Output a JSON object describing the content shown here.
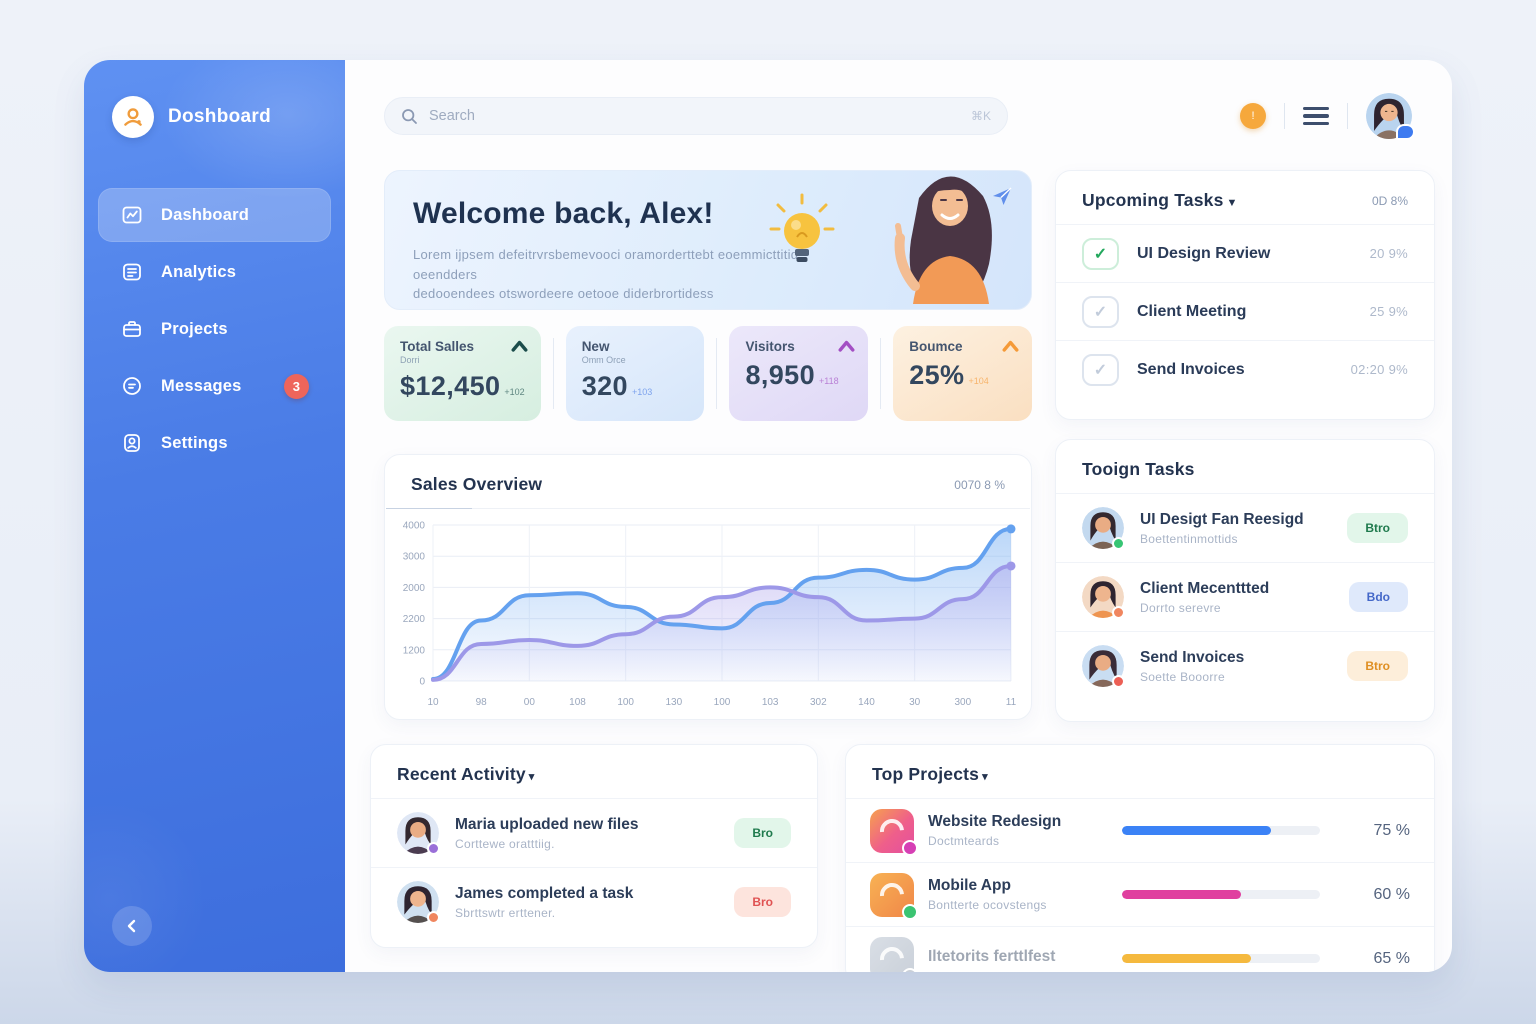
{
  "colors": {
    "sidebar_blue": "#4a7ce6",
    "accent_blue": "#3b82f6",
    "bar_pink": "#e0409f",
    "bar_yellow": "#f5b93e",
    "notification_orange": "#f6a83c",
    "messages_badge_red": "#ee655b"
  },
  "sidebar": {
    "logo_text": "Doshboard",
    "items": [
      {
        "label": "Dashboard",
        "active": true
      },
      {
        "label": "Analytics",
        "active": false
      },
      {
        "label": "Projects",
        "active": false
      },
      {
        "label": "Messages",
        "active": false,
        "badge": "3"
      },
      {
        "label": "Settings",
        "active": false
      }
    ]
  },
  "topbar": {
    "search_placeholder": "Search",
    "shortcut_hint": "⌘K"
  },
  "welcome": {
    "title": "Welcome back, Alex!",
    "line1": "Lorem ijpsem defeitrvrsbemevooci oramorderttebt eoemmicttitid oeendders",
    "line2": "dedooendees otswordeere oetooe diderbrortidess"
  },
  "stats": [
    {
      "label": "Total Salles",
      "sublabel": "Dorri",
      "value": "$12,450",
      "delta": "+102",
      "arrow_color": "#1b4d4b",
      "has_arrow": true
    },
    {
      "label": "New",
      "sublabel": "Omm Orce",
      "value": "320",
      "delta": "+103",
      "arrow_color": "#4a7ce6",
      "has_arrow": false
    },
    {
      "label": "Visitors",
      "sublabel": "",
      "value": "8,950",
      "delta": "+118",
      "arrow_color": "#a34fc4",
      "has_arrow": true
    },
    {
      "label": "Boumce",
      "sublabel": "",
      "value": "25%",
      "delta": "+104",
      "arrow_color": "#f59a38",
      "has_arrow": true
    }
  ],
  "sales_overview": {
    "title": "Sales Overview",
    "meta": "0070 8 %",
    "chart_data": {
      "type": "area",
      "x_labels": [
        "10",
        "98",
        "00",
        "108",
        "100",
        "130",
        "100",
        "103",
        "302",
        "140",
        "30",
        "300",
        "11"
      ],
      "y_tick_labels": [
        "4000",
        "3000",
        "2000",
        "2200",
        "1200",
        "0"
      ],
      "ylim": [
        0,
        4000
      ],
      "grid": true,
      "legend": "none",
      "series": [
        {
          "name": "sales-current",
          "color": "#64a1ef",
          "fill_from": "rgba(120,175,242,0.50)",
          "fill_to": "rgba(120,175,242,0.04)",
          "values": [
            50,
            1550,
            2200,
            2250,
            1900,
            1450,
            1350,
            2000,
            2650,
            2850,
            2600,
            2900,
            3900
          ]
        },
        {
          "name": "sales-previous",
          "color": "#9d98e8",
          "fill_from": "rgba(165,155,235,0.42)",
          "fill_to": "rgba(165,155,235,0.04)",
          "values": [
            30,
            950,
            1050,
            900,
            1200,
            1650,
            2150,
            2400,
            2150,
            1550,
            1600,
            2100,
            2950
          ]
        }
      ]
    }
  },
  "upcoming_tasks": {
    "title": "Upcoming Tasks",
    "meta": "0D 8%",
    "items": [
      {
        "label": "UI Design Review",
        "meta": "20 9%",
        "checked": true
      },
      {
        "label": "Client Meeting",
        "meta": "25 9%",
        "checked": false
      },
      {
        "label": "Send Invoices",
        "meta": "02:20 9%",
        "checked": false
      }
    ]
  },
  "team_tasks": {
    "title": "Tooign Tasks",
    "items": [
      {
        "title": "UI Desigt Fan Reesigd",
        "subtitle": "Boettentinmottids",
        "badge": "Btro",
        "badge_bg": "#e2f6ea",
        "badge_fg": "#1f7a4d",
        "dot": "#37c574"
      },
      {
        "title": "Client Mecenttted",
        "subtitle": "Dorrto serevre",
        "badge": "Bdo",
        "badge_bg": "#dfe9fb",
        "badge_fg": "#4468c9",
        "dot": "#f0865f"
      },
      {
        "title": "Send Invoices",
        "subtitle": "Soette Booorre",
        "badge": "Btro",
        "badge_bg": "#fdeeda",
        "badge_fg": "#df8f22",
        "dot": "#ec5f55"
      }
    ]
  },
  "recent_activity": {
    "title": "Recent Activity",
    "items": [
      {
        "title": "Maria uploaded new files",
        "subtitle": "Corttewe oratttiig.",
        "badge": "Bro",
        "badge_bg": "#e2f6ea",
        "badge_fg": "#1f7a4d",
        "dot": "#9a6fd8"
      },
      {
        "title": "James completed a task",
        "subtitle": "Sbrttswtr erttener.",
        "badge": "Bro",
        "badge_bg": "#fde4dd",
        "badge_fg": "#e05252",
        "dot": "#f0865f"
      }
    ]
  },
  "top_projects": {
    "title": "Top Projects",
    "items": [
      {
        "title": "Website Redesign",
        "subtitle": "Doctmteards",
        "percent": 75,
        "percent_label": "75 %",
        "bar_color": "#3b82f6",
        "icon_badge": "#d63fb4"
      },
      {
        "title": "Mobile App",
        "subtitle": "Bontterte ocovstengs",
        "percent": 60,
        "percent_label": "60 %",
        "bar_color": "#e0409f",
        "icon_badge": "#3bc472"
      },
      {
        "title": "Iltetorits ferttlfest",
        "subtitle": "",
        "percent": 65,
        "percent_label": "65 %",
        "bar_color": "#f5b93e",
        "icon_badge": "#8a97ab"
      }
    ]
  }
}
